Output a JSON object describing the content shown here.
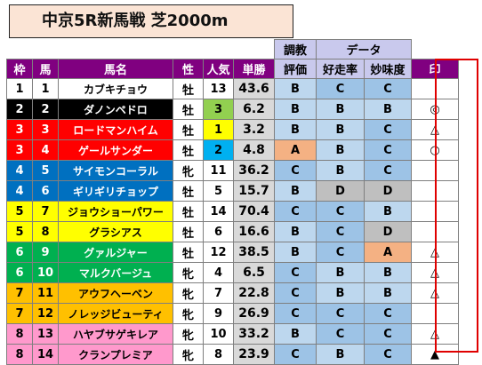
{
  "title": "中京5R新馬戦 芝2000m",
  "group_headers": {
    "chokyo": "調教",
    "data": "データ",
    "hyoka": "評価",
    "kousouritsu": "好走率",
    "myoumido": "妙味度"
  },
  "columns": {
    "waku": "枠",
    "uma": "馬",
    "name": "馬名",
    "sex": "性",
    "pop": "人気",
    "odds": "単勝",
    "mark": "印"
  },
  "grade_colors": {
    "A": "#f4b183",
    "B": "#bdd7ee",
    "C": "#9dc3e6",
    "D": "#bfbfbf"
  },
  "waku_colors": {
    "1": [
      "#ffffff",
      "#000000"
    ],
    "2": [
      "#000000",
      "#ffffff"
    ],
    "3": [
      "#ff0000",
      "#ffffff"
    ],
    "4": [
      "#0070c0",
      "#ffffff"
    ],
    "5": [
      "#ffff00",
      "#000000"
    ],
    "6": [
      "#00b050",
      "#ffffff"
    ],
    "7": [
      "#ffc000",
      "#000000"
    ],
    "8": [
      "#ff99cc",
      "#000000"
    ]
  },
  "pop_highlight": {
    "1": "#ffff00",
    "2": "#00b0f0",
    "3": "#92d050"
  },
  "horses": [
    {
      "waku": "1",
      "uma": "1",
      "name": "カブキチョウ",
      "sex": "牡",
      "pop": "13",
      "odds": "43.6",
      "hyoka": "B",
      "kousou": "C",
      "myoumi": "C",
      "mark": ""
    },
    {
      "waku": "2",
      "uma": "2",
      "name": "ダノンペドロ",
      "sex": "牡",
      "pop": "3",
      "odds": "6.2",
      "hyoka": "B",
      "kousou": "B",
      "myoumi": "B",
      "mark": "◎"
    },
    {
      "waku": "3",
      "uma": "3",
      "name": "ロードマンハイム",
      "sex": "牡",
      "pop": "1",
      "odds": "3.2",
      "hyoka": "B",
      "kousou": "B",
      "myoumi": "C",
      "mark": "△"
    },
    {
      "waku": "3",
      "uma": "4",
      "name": "ゲールサンダー",
      "sex": "牡",
      "pop": "2",
      "odds": "4.8",
      "hyoka": "A",
      "kousou": "B",
      "myoumi": "C",
      "mark": "○"
    },
    {
      "waku": "4",
      "uma": "5",
      "name": "サイモンコーラル",
      "sex": "牝",
      "pop": "11",
      "odds": "36.2",
      "hyoka": "C",
      "kousou": "B",
      "myoumi": "C",
      "mark": ""
    },
    {
      "waku": "4",
      "uma": "6",
      "name": "ギリギリチョップ",
      "sex": "牡",
      "pop": "5",
      "odds": "15.7",
      "hyoka": "B",
      "kousou": "D",
      "myoumi": "D",
      "mark": ""
    },
    {
      "waku": "5",
      "uma": "7",
      "name": "ジョウショーパワー",
      "sex": "牡",
      "pop": "14",
      "odds": "70.4",
      "hyoka": "C",
      "kousou": "C",
      "myoumi": "B",
      "mark": ""
    },
    {
      "waku": "5",
      "uma": "8",
      "name": "グラシアス",
      "sex": "牡",
      "pop": "6",
      "odds": "16.6",
      "hyoka": "B",
      "kousou": "C",
      "myoumi": "D",
      "mark": ""
    },
    {
      "waku": "6",
      "uma": "9",
      "name": "グァルジャー",
      "sex": "牡",
      "pop": "12",
      "odds": "38.5",
      "hyoka": "B",
      "kousou": "C",
      "myoumi": "A",
      "mark": "△"
    },
    {
      "waku": "6",
      "uma": "10",
      "name": "マルクバージュ",
      "sex": "牝",
      "pop": "4",
      "odds": "6.5",
      "hyoka": "C",
      "kousou": "B",
      "myoumi": "B",
      "mark": "△"
    },
    {
      "waku": "7",
      "uma": "11",
      "name": "アウフヘーベン",
      "sex": "牝",
      "pop": "7",
      "odds": "22.8",
      "hyoka": "C",
      "kousou": "B",
      "myoumi": "B",
      "mark": "△"
    },
    {
      "waku": "7",
      "uma": "12",
      "name": "ノレッジビューティ",
      "sex": "牝",
      "pop": "9",
      "odds": "26.9",
      "hyoka": "C",
      "kousou": "C",
      "myoumi": "C",
      "mark": ""
    },
    {
      "waku": "8",
      "uma": "13",
      "name": "ハヤブサゲキレア",
      "sex": "牝",
      "pop": "10",
      "odds": "33.2",
      "hyoka": "B",
      "kousou": "C",
      "myoumi": "C",
      "mark": "△"
    },
    {
      "waku": "8",
      "uma": "14",
      "name": "クランプレミア",
      "sex": "牝",
      "pop": "8",
      "odds": "23.9",
      "hyoka": "C",
      "kousou": "B",
      "myoumi": "C",
      "mark": "▲"
    }
  ]
}
